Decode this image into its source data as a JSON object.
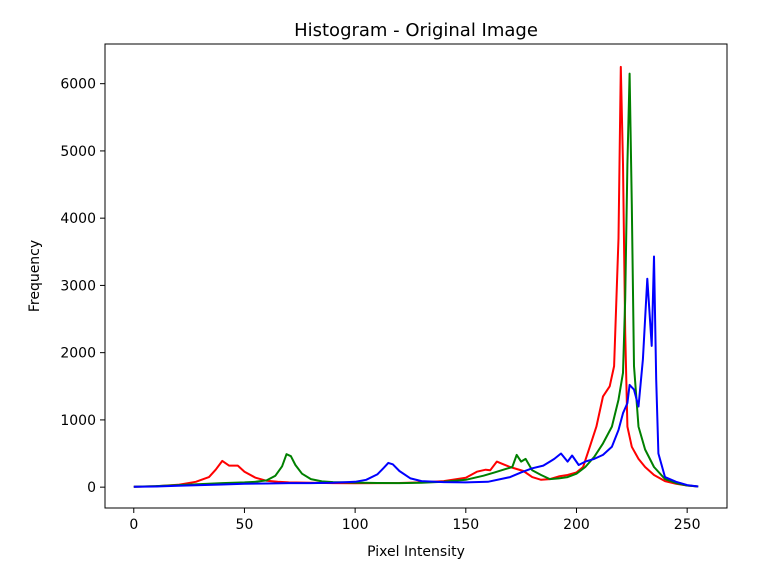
{
  "chart_data": {
    "type": "line",
    "title": "Histogram - Original Image",
    "xlabel": "Pixel Intensity",
    "ylabel": "Frequency",
    "xlim": [
      -13,
      268
    ],
    "ylim": [
      -310,
      6590
    ],
    "xticks": [
      0,
      50,
      100,
      150,
      200,
      250
    ],
    "yticks": [
      0,
      1000,
      2000,
      3000,
      4000,
      5000,
      6000
    ],
    "grid": false,
    "legend": "none",
    "series": [
      {
        "color": "#ff0000",
        "points": [
          [
            0,
            5
          ],
          [
            10,
            12
          ],
          [
            20,
            35
          ],
          [
            28,
            80
          ],
          [
            34,
            150
          ],
          [
            37,
            260
          ],
          [
            40,
            390
          ],
          [
            43,
            320
          ],
          [
            47,
            320
          ],
          [
            50,
            230
          ],
          [
            55,
            140
          ],
          [
            60,
            95
          ],
          [
            65,
            80
          ],
          [
            70,
            70
          ],
          [
            80,
            65
          ],
          [
            90,
            60
          ],
          [
            100,
            58
          ],
          [
            110,
            60
          ],
          [
            120,
            62
          ],
          [
            130,
            70
          ],
          [
            140,
            90
          ],
          [
            150,
            140
          ],
          [
            155,
            230
          ],
          [
            159,
            260
          ],
          [
            161,
            250
          ],
          [
            164,
            380
          ],
          [
            167,
            340
          ],
          [
            170,
            300
          ],
          [
            173,
            270
          ],
          [
            176,
            240
          ],
          [
            180,
            150
          ],
          [
            184,
            110
          ],
          [
            188,
            120
          ],
          [
            192,
            160
          ],
          [
            196,
            180
          ],
          [
            200,
            220
          ],
          [
            203,
            300
          ],
          [
            206,
            600
          ],
          [
            209,
            900
          ],
          [
            212,
            1350
          ],
          [
            215,
            1500
          ],
          [
            217,
            1800
          ],
          [
            219,
            3700
          ],
          [
            220,
            6250
          ],
          [
            221,
            4800
          ],
          [
            222,
            2300
          ],
          [
            223,
            900
          ],
          [
            225,
            600
          ],
          [
            228,
            420
          ],
          [
            231,
            300
          ],
          [
            235,
            180
          ],
          [
            240,
            90
          ],
          [
            245,
            50
          ],
          [
            250,
            25
          ],
          [
            255,
            10
          ]
        ]
      },
      {
        "color": "#008000",
        "points": [
          [
            0,
            5
          ],
          [
            10,
            15
          ],
          [
            20,
            30
          ],
          [
            30,
            45
          ],
          [
            40,
            60
          ],
          [
            50,
            70
          ],
          [
            55,
            80
          ],
          [
            60,
            100
          ],
          [
            64,
            170
          ],
          [
            67,
            310
          ],
          [
            69,
            490
          ],
          [
            71,
            460
          ],
          [
            73,
            330
          ],
          [
            76,
            200
          ],
          [
            80,
            120
          ],
          [
            85,
            85
          ],
          [
            90,
            75
          ],
          [
            100,
            68
          ],
          [
            110,
            62
          ],
          [
            120,
            60
          ],
          [
            130,
            65
          ],
          [
            140,
            80
          ],
          [
            150,
            110
          ],
          [
            158,
            170
          ],
          [
            163,
            220
          ],
          [
            167,
            260
          ],
          [
            171,
            300
          ],
          [
            173,
            480
          ],
          [
            175,
            380
          ],
          [
            177,
            420
          ],
          [
            180,
            250
          ],
          [
            184,
            180
          ],
          [
            188,
            120
          ],
          [
            192,
            130
          ],
          [
            196,
            150
          ],
          [
            200,
            200
          ],
          [
            204,
            300
          ],
          [
            208,
            450
          ],
          [
            212,
            650
          ],
          [
            216,
            900
          ],
          [
            219,
            1300
          ],
          [
            221,
            1700
          ],
          [
            222,
            2800
          ],
          [
            223,
            4800
          ],
          [
            224,
            6150
          ],
          [
            225,
            4200
          ],
          [
            226,
            1800
          ],
          [
            228,
            900
          ],
          [
            231,
            560
          ],
          [
            235,
            300
          ],
          [
            240,
            120
          ],
          [
            245,
            60
          ],
          [
            250,
            25
          ],
          [
            255,
            10
          ]
        ]
      },
      {
        "color": "#0000ff",
        "points": [
          [
            0,
            5
          ],
          [
            10,
            10
          ],
          [
            20,
            20
          ],
          [
            30,
            30
          ],
          [
            40,
            40
          ],
          [
            50,
            50
          ],
          [
            60,
            55
          ],
          [
            70,
            60
          ],
          [
            80,
            60
          ],
          [
            90,
            65
          ],
          [
            100,
            80
          ],
          [
            105,
            110
          ],
          [
            110,
            190
          ],
          [
            113,
            290
          ],
          [
            115,
            360
          ],
          [
            117,
            340
          ],
          [
            120,
            240
          ],
          [
            125,
            130
          ],
          [
            130,
            90
          ],
          [
            140,
            75
          ],
          [
            150,
            70
          ],
          [
            160,
            80
          ],
          [
            170,
            150
          ],
          [
            175,
            220
          ],
          [
            180,
            280
          ],
          [
            185,
            320
          ],
          [
            188,
            380
          ],
          [
            190,
            420
          ],
          [
            193,
            500
          ],
          [
            196,
            380
          ],
          [
            198,
            470
          ],
          [
            201,
            330
          ],
          [
            204,
            380
          ],
          [
            208,
            420
          ],
          [
            212,
            480
          ],
          [
            216,
            600
          ],
          [
            219,
            850
          ],
          [
            221,
            1100
          ],
          [
            223,
            1250
          ],
          [
            224,
            1520
          ],
          [
            226,
            1450
          ],
          [
            228,
            1200
          ],
          [
            230,
            1900
          ],
          [
            232,
            3100
          ],
          [
            234,
            2100
          ],
          [
            235,
            3430
          ],
          [
            236,
            1600
          ],
          [
            237,
            500
          ],
          [
            240,
            150
          ],
          [
            245,
            80
          ],
          [
            250,
            30
          ],
          [
            255,
            10
          ]
        ]
      }
    ]
  }
}
